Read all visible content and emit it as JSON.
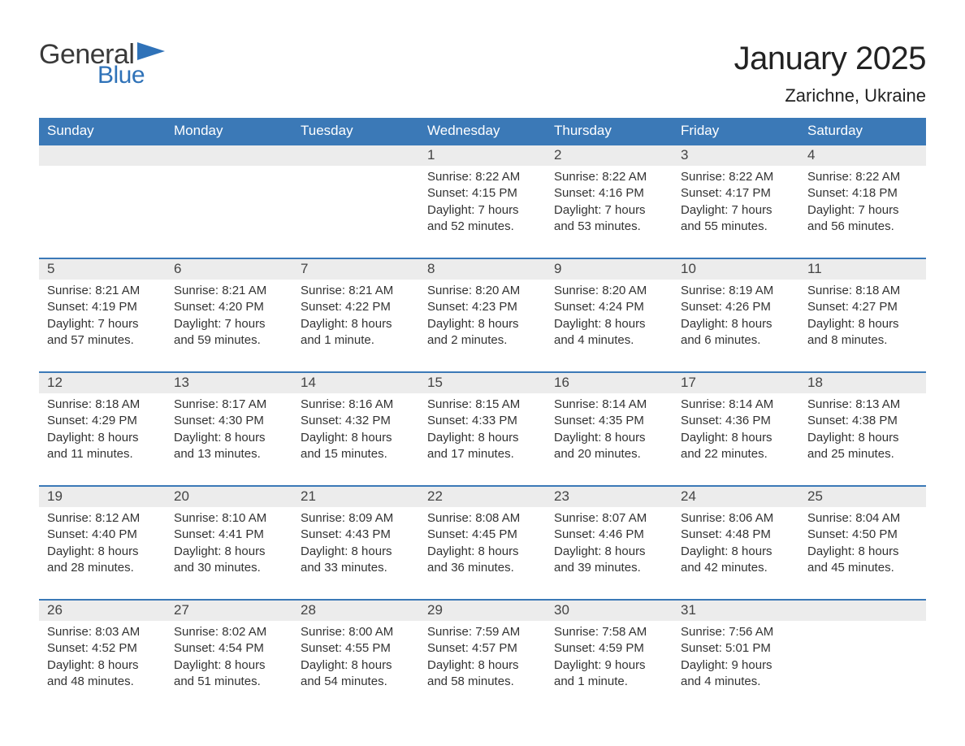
{
  "brand": {
    "word1": "General",
    "word2": "Blue",
    "flag_color": "#2f72b8"
  },
  "title": "January 2025",
  "location": "Zarichne, Ukraine",
  "colors": {
    "header_bg": "#3b79b7",
    "header_text": "#ffffff",
    "daynum_bg": "#ececec",
    "row_border": "#3b79b7",
    "body_text": "#333333"
  },
  "dayHeaders": [
    "Sunday",
    "Monday",
    "Tuesday",
    "Wednesday",
    "Thursday",
    "Friday",
    "Saturday"
  ],
  "weeks": [
    [
      null,
      null,
      null,
      {
        "n": "1",
        "sunrise": "Sunrise: 8:22 AM",
        "sunset": "Sunset: 4:15 PM",
        "d1": "Daylight: 7 hours",
        "d2": "and 52 minutes."
      },
      {
        "n": "2",
        "sunrise": "Sunrise: 8:22 AM",
        "sunset": "Sunset: 4:16 PM",
        "d1": "Daylight: 7 hours",
        "d2": "and 53 minutes."
      },
      {
        "n": "3",
        "sunrise": "Sunrise: 8:22 AM",
        "sunset": "Sunset: 4:17 PM",
        "d1": "Daylight: 7 hours",
        "d2": "and 55 minutes."
      },
      {
        "n": "4",
        "sunrise": "Sunrise: 8:22 AM",
        "sunset": "Sunset: 4:18 PM",
        "d1": "Daylight: 7 hours",
        "d2": "and 56 minutes."
      }
    ],
    [
      {
        "n": "5",
        "sunrise": "Sunrise: 8:21 AM",
        "sunset": "Sunset: 4:19 PM",
        "d1": "Daylight: 7 hours",
        "d2": "and 57 minutes."
      },
      {
        "n": "6",
        "sunrise": "Sunrise: 8:21 AM",
        "sunset": "Sunset: 4:20 PM",
        "d1": "Daylight: 7 hours",
        "d2": "and 59 minutes."
      },
      {
        "n": "7",
        "sunrise": "Sunrise: 8:21 AM",
        "sunset": "Sunset: 4:22 PM",
        "d1": "Daylight: 8 hours",
        "d2": "and 1 minute."
      },
      {
        "n": "8",
        "sunrise": "Sunrise: 8:20 AM",
        "sunset": "Sunset: 4:23 PM",
        "d1": "Daylight: 8 hours",
        "d2": "and 2 minutes."
      },
      {
        "n": "9",
        "sunrise": "Sunrise: 8:20 AM",
        "sunset": "Sunset: 4:24 PM",
        "d1": "Daylight: 8 hours",
        "d2": "and 4 minutes."
      },
      {
        "n": "10",
        "sunrise": "Sunrise: 8:19 AM",
        "sunset": "Sunset: 4:26 PM",
        "d1": "Daylight: 8 hours",
        "d2": "and 6 minutes."
      },
      {
        "n": "11",
        "sunrise": "Sunrise: 8:18 AM",
        "sunset": "Sunset: 4:27 PM",
        "d1": "Daylight: 8 hours",
        "d2": "and 8 minutes."
      }
    ],
    [
      {
        "n": "12",
        "sunrise": "Sunrise: 8:18 AM",
        "sunset": "Sunset: 4:29 PM",
        "d1": "Daylight: 8 hours",
        "d2": "and 11 minutes."
      },
      {
        "n": "13",
        "sunrise": "Sunrise: 8:17 AM",
        "sunset": "Sunset: 4:30 PM",
        "d1": "Daylight: 8 hours",
        "d2": "and 13 minutes."
      },
      {
        "n": "14",
        "sunrise": "Sunrise: 8:16 AM",
        "sunset": "Sunset: 4:32 PM",
        "d1": "Daylight: 8 hours",
        "d2": "and 15 minutes."
      },
      {
        "n": "15",
        "sunrise": "Sunrise: 8:15 AM",
        "sunset": "Sunset: 4:33 PM",
        "d1": "Daylight: 8 hours",
        "d2": "and 17 minutes."
      },
      {
        "n": "16",
        "sunrise": "Sunrise: 8:14 AM",
        "sunset": "Sunset: 4:35 PM",
        "d1": "Daylight: 8 hours",
        "d2": "and 20 minutes."
      },
      {
        "n": "17",
        "sunrise": "Sunrise: 8:14 AM",
        "sunset": "Sunset: 4:36 PM",
        "d1": "Daylight: 8 hours",
        "d2": "and 22 minutes."
      },
      {
        "n": "18",
        "sunrise": "Sunrise: 8:13 AM",
        "sunset": "Sunset: 4:38 PM",
        "d1": "Daylight: 8 hours",
        "d2": "and 25 minutes."
      }
    ],
    [
      {
        "n": "19",
        "sunrise": "Sunrise: 8:12 AM",
        "sunset": "Sunset: 4:40 PM",
        "d1": "Daylight: 8 hours",
        "d2": "and 28 minutes."
      },
      {
        "n": "20",
        "sunrise": "Sunrise: 8:10 AM",
        "sunset": "Sunset: 4:41 PM",
        "d1": "Daylight: 8 hours",
        "d2": "and 30 minutes."
      },
      {
        "n": "21",
        "sunrise": "Sunrise: 8:09 AM",
        "sunset": "Sunset: 4:43 PM",
        "d1": "Daylight: 8 hours",
        "d2": "and 33 minutes."
      },
      {
        "n": "22",
        "sunrise": "Sunrise: 8:08 AM",
        "sunset": "Sunset: 4:45 PM",
        "d1": "Daylight: 8 hours",
        "d2": "and 36 minutes."
      },
      {
        "n": "23",
        "sunrise": "Sunrise: 8:07 AM",
        "sunset": "Sunset: 4:46 PM",
        "d1": "Daylight: 8 hours",
        "d2": "and 39 minutes."
      },
      {
        "n": "24",
        "sunrise": "Sunrise: 8:06 AM",
        "sunset": "Sunset: 4:48 PM",
        "d1": "Daylight: 8 hours",
        "d2": "and 42 minutes."
      },
      {
        "n": "25",
        "sunrise": "Sunrise: 8:04 AM",
        "sunset": "Sunset: 4:50 PM",
        "d1": "Daylight: 8 hours",
        "d2": "and 45 minutes."
      }
    ],
    [
      {
        "n": "26",
        "sunrise": "Sunrise: 8:03 AM",
        "sunset": "Sunset: 4:52 PM",
        "d1": "Daylight: 8 hours",
        "d2": "and 48 minutes."
      },
      {
        "n": "27",
        "sunrise": "Sunrise: 8:02 AM",
        "sunset": "Sunset: 4:54 PM",
        "d1": "Daylight: 8 hours",
        "d2": "and 51 minutes."
      },
      {
        "n": "28",
        "sunrise": "Sunrise: 8:00 AM",
        "sunset": "Sunset: 4:55 PM",
        "d1": "Daylight: 8 hours",
        "d2": "and 54 minutes."
      },
      {
        "n": "29",
        "sunrise": "Sunrise: 7:59 AM",
        "sunset": "Sunset: 4:57 PM",
        "d1": "Daylight: 8 hours",
        "d2": "and 58 minutes."
      },
      {
        "n": "30",
        "sunrise": "Sunrise: 7:58 AM",
        "sunset": "Sunset: 4:59 PM",
        "d1": "Daylight: 9 hours",
        "d2": "and 1 minute."
      },
      {
        "n": "31",
        "sunrise": "Sunrise: 7:56 AM",
        "sunset": "Sunset: 5:01 PM",
        "d1": "Daylight: 9 hours",
        "d2": "and 4 minutes."
      },
      null
    ]
  ]
}
